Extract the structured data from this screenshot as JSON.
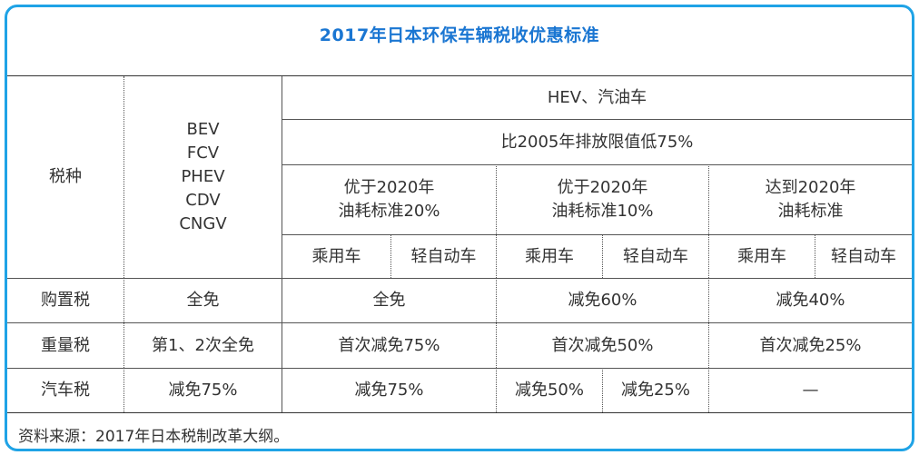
{
  "title": "2017年日本环保车辆税收优惠标准",
  "header": {
    "tax_type": "税种",
    "ev_types": [
      "BEV",
      "FCV",
      "PHEV",
      "CDV",
      "CNGV"
    ],
    "hev_group": "HEV、汽油车",
    "emission": "比2005年排放限值低75%",
    "cat1_line1": "优于2020年",
    "cat1_line2": "油耗标准20%",
    "cat2_line1": "优于2020年",
    "cat2_line2": "油耗标准10%",
    "cat3_line1": "达到2020年",
    "cat3_line2": "油耗标准",
    "passenger": "乘用车",
    "kei": "轻自动车"
  },
  "rows": [
    {
      "name": "购置税",
      "ev": "全免",
      "c1": "全免",
      "c2": "减免60%",
      "c3": "减免40%"
    },
    {
      "name": "重量税",
      "ev": "第1、2次全免",
      "c1": "首次减免75%",
      "c2": "首次减免50%",
      "c3": "首次减免25%"
    },
    {
      "name": "汽车税",
      "ev": "减免75%",
      "c1": "减免75%",
      "c2a": "减免50%",
      "c2b": "减免25%",
      "c3": "—"
    }
  ],
  "source": "资料来源：2017年日本税制改革大纲。"
}
